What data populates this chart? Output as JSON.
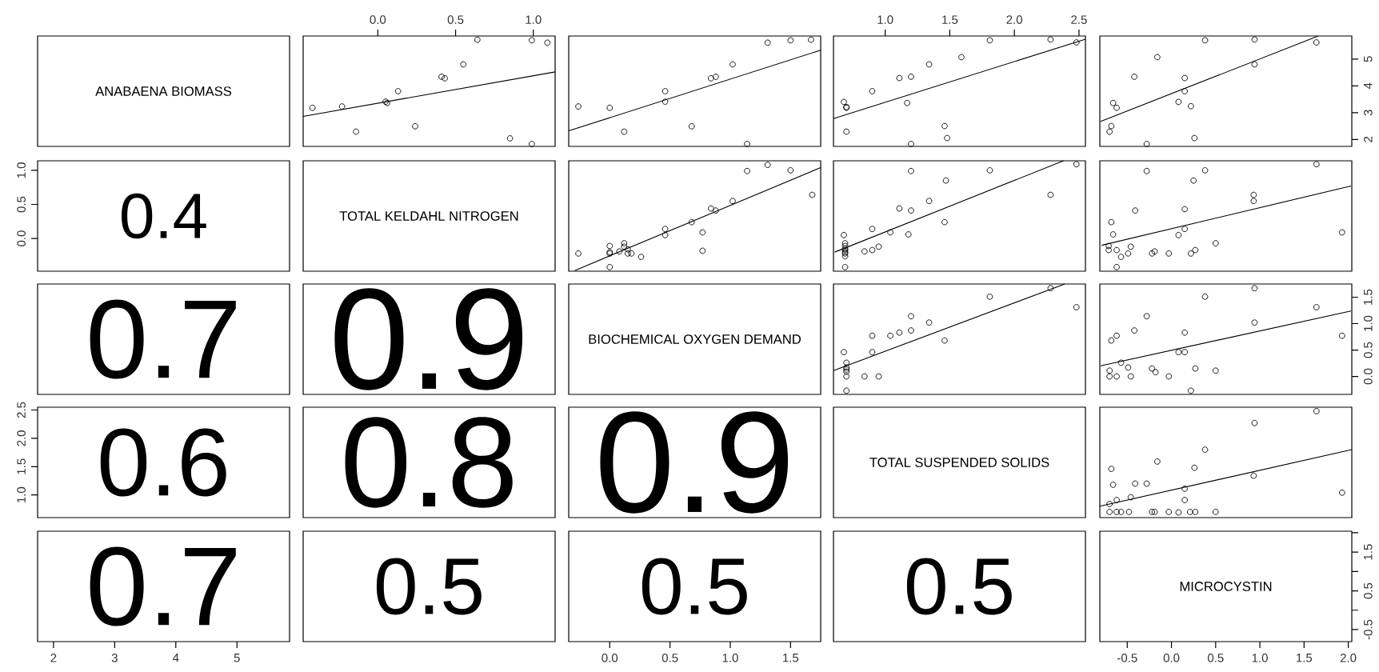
{
  "chart_data": [
    {
      "type": "other",
      "title": "ANABAENA BIOMASS"
    },
    {
      "type": "scatter",
      "xlim": [
        -0.48,
        1.14
      ],
      "ylim": [
        1.74,
        5.86
      ],
      "xticks": [
        {
          "value": 0,
          "label": "0.0"
        },
        0.5,
        {
          "value": 1,
          "label": "1.0"
        }
      ],
      "tick_labels": "x",
      "series": [
        {
          "type": "scatter",
          "color": "#000000",
          "marker": "circle",
          "x": [
            -0.42,
            -0.23,
            -0.14,
            0.05,
            0.06,
            0.13,
            0.24,
            0.41,
            0.43,
            0.55,
            0.64,
            0.85,
            0.99,
            0.99,
            1.09
          ],
          "values": [
            3.18,
            3.23,
            2.29,
            3.41,
            3.36,
            3.8,
            2.49,
            4.34,
            4.28,
            4.8,
            5.72,
            2.04,
            1.83,
            5.7,
            5.61
          ]
        },
        {
          "type": "line",
          "color": "#000000",
          "marker": "none",
          "line_style": "solid",
          "x": [
            -0.48,
            1.14
          ],
          "values": [
            2.86,
            4.52
          ]
        }
      ]
    },
    {
      "type": "scatter",
      "xlim": [
        -0.34,
        1.75
      ],
      "ylim": [
        1.74,
        5.86
      ],
      "tick_labels": false,
      "series": [
        {
          "type": "scatter",
          "color": "#000000",
          "marker": "circle",
          "x": [
            -0.26,
            0.0,
            0.12,
            0.46,
            0.46,
            0.68,
            0.84,
            0.88,
            1.02,
            1.14,
            1.31,
            1.5,
            1.67
          ],
          "values": [
            3.23,
            3.18,
            2.29,
            3.8,
            3.41,
            2.49,
            4.28,
            4.34,
            4.8,
            1.83,
            5.61,
            5.7,
            5.72
          ]
        },
        {
          "type": "line",
          "color": "#000000",
          "marker": "none",
          "line_style": "solid",
          "x": [
            -0.34,
            1.75
          ],
          "values": [
            2.32,
            5.33
          ]
        }
      ]
    },
    {
      "type": "scatter",
      "xlim": [
        0.6,
        2.55
      ],
      "ylim": [
        1.74,
        5.86
      ],
      "xticks": [
        {
          "value": 1,
          "label": "1.0"
        },
        1.5,
        {
          "value": 2,
          "label": "2.0"
        },
        2.5
      ],
      "tick_labels": "x",
      "series": [
        {
          "type": "scatter",
          "color": "#000000",
          "marker": "circle",
          "x": [
            0.68,
            0.7,
            0.7,
            0.7,
            0.9,
            1.11,
            1.17,
            1.2,
            1.2,
            1.34,
            1.46,
            1.48,
            1.59,
            1.81,
            2.28,
            2.48
          ],
          "values": [
            3.4,
            3.21,
            3.18,
            2.29,
            3.8,
            4.29,
            3.36,
            4.34,
            1.83,
            4.8,
            2.5,
            2.05,
            5.07,
            5.7,
            5.73,
            5.62
          ]
        },
        {
          "type": "line",
          "color": "#000000",
          "marker": "none",
          "line_style": "solid",
          "x": [
            0.6,
            2.55
          ],
          "values": [
            2.78,
            5.74
          ]
        }
      ]
    },
    {
      "type": "scatter",
      "xlim": [
        -0.81,
        2.04
      ],
      "ylim": [
        1.74,
        5.86
      ],
      "yticks": [
        2,
        3,
        4,
        5
      ],
      "tick_labels": "y",
      "series": [
        {
          "type": "scatter",
          "color": "#000000",
          "marker": "circle",
          "x": [
            -0.7,
            -0.68,
            -0.66,
            -0.62,
            -0.42,
            -0.28,
            -0.16,
            0.08,
            0.15,
            0.15,
            0.22,
            0.26,
            0.38,
            0.94,
            0.94,
            1.64
          ],
          "values": [
            2.29,
            2.5,
            3.36,
            3.18,
            4.34,
            1.83,
            5.07,
            3.4,
            4.29,
            3.8,
            3.24,
            2.05,
            5.7,
            4.8,
            5.73,
            5.62
          ]
        },
        {
          "type": "line",
          "color": "#000000",
          "marker": "none",
          "line_style": "solid",
          "x": [
            -0.8,
            1.66
          ],
          "values": [
            2.67,
            5.86
          ]
        }
      ]
    },
    {
      "type": "scatter",
      "annotations": [
        "0.4"
      ],
      "xlim": [
        1.74,
        5.86
      ],
      "ylim": [
        -0.48,
        1.14
      ],
      "yticks": [
        {
          "value": 0,
          "label": "0.0"
        },
        0.5,
        {
          "value": 1,
          "label": "1.0"
        }
      ],
      "tick_labels": "y"
    },
    {
      "type": "other",
      "title": "TOTAL KELDAHL NITROGEN"
    },
    {
      "type": "scatter",
      "xlim": [
        -0.34,
        1.75
      ],
      "ylim": [
        -0.48,
        1.14
      ],
      "tick_labels": false,
      "series": [
        {
          "type": "scatter",
          "color": "#000000",
          "marker": "circle",
          "x": [
            -0.26,
            0.0,
            0.0,
            0.0,
            0.0,
            0.08,
            0.12,
            0.12,
            0.15,
            0.15,
            0.18,
            0.26,
            0.46,
            0.46,
            0.68,
            0.77,
            0.77,
            0.84,
            0.88,
            1.02,
            1.14,
            1.31,
            1.5,
            1.68
          ],
          "values": [
            -0.22,
            -0.11,
            -0.2,
            -0.22,
            -0.42,
            -0.19,
            -0.07,
            -0.12,
            -0.16,
            -0.22,
            -0.22,
            -0.27,
            0.14,
            0.05,
            0.24,
            0.09,
            -0.18,
            0.44,
            0.41,
            0.55,
            0.99,
            1.08,
            1.0,
            0.64
          ]
        },
        {
          "type": "line",
          "color": "#000000",
          "marker": "none",
          "line_style": "solid",
          "x": [
            -0.29,
            1.75
          ],
          "values": [
            -0.47,
            1.04
          ]
        }
      ]
    },
    {
      "type": "scatter",
      "xlim": [
        0.6,
        2.55
      ],
      "ylim": [
        -0.48,
        1.14
      ],
      "tick_labels": false,
      "series": [
        {
          "type": "scatter",
          "color": "#000000",
          "marker": "circle",
          "x": [
            0.68,
            0.69,
            0.69,
            0.69,
            0.69,
            0.69,
            0.69,
            0.69,
            0.69,
            0.84,
            0.9,
            0.9,
            0.95,
            1.04,
            1.11,
            1.18,
            1.2,
            1.34,
            1.46,
            1.47,
            1.2,
            1.81,
            2.48,
            2.28
          ],
          "values": [
            0.05,
            -0.07,
            -0.11,
            -0.15,
            -0.17,
            -0.2,
            -0.22,
            -0.26,
            -0.42,
            -0.19,
            -0.17,
            0.14,
            -0.12,
            0.09,
            0.44,
            0.06,
            0.41,
            0.55,
            0.24,
            0.85,
            0.99,
            1.0,
            1.09,
            0.64
          ]
        },
        {
          "type": "line",
          "color": "#000000",
          "marker": "none",
          "line_style": "solid",
          "x": [
            0.61,
            2.38
          ],
          "values": [
            -0.2,
            1.14
          ]
        }
      ]
    },
    {
      "type": "scatter",
      "xlim": [
        -0.81,
        2.04
      ],
      "ylim": [
        -0.48,
        1.14
      ],
      "tick_labels": false,
      "series": [
        {
          "type": "scatter",
          "color": "#000000",
          "marker": "circle",
          "x": [
            -0.71,
            -0.71,
            -0.68,
            -0.66,
            -0.62,
            -0.62,
            -0.57,
            -0.49,
            -0.46,
            -0.41,
            -0.22,
            -0.19,
            -0.03,
            0.08,
            0.15,
            0.15,
            0.22,
            0.27,
            0.25,
            0.5,
            0.93,
            0.93,
            1.93,
            -0.28,
            0.38,
            1.64
          ],
          "values": [
            -0.11,
            -0.17,
            0.24,
            0.06,
            -0.17,
            -0.42,
            -0.27,
            -0.22,
            -0.12,
            0.41,
            -0.22,
            -0.19,
            -0.22,
            0.05,
            0.43,
            0.14,
            -0.22,
            -0.17,
            0.85,
            -0.07,
            0.64,
            0.55,
            0.09,
            0.99,
            1.0,
            1.09
          ]
        },
        {
          "type": "line",
          "color": "#000000",
          "marker": "none",
          "line_style": "solid",
          "x": [
            -0.79,
            2.03
          ],
          "values": [
            -0.1,
            0.77
          ]
        }
      ]
    },
    {
      "type": "other",
      "values": [
        0.7
      ],
      "value_labels": [
        "0.7"
      ]
    },
    {
      "type": "other",
      "values": [
        0.9
      ],
      "value_labels": [
        "0.9"
      ]
    },
    {
      "type": "other",
      "title": "BIOCHEMICAL OXYGEN DEMAND"
    },
    {
      "type": "scatter",
      "xlim": [
        0.6,
        2.55
      ],
      "ylim": [
        -0.34,
        1.75
      ],
      "tick_labels": false,
      "series": [
        {
          "type": "scatter",
          "color": "#000000",
          "marker": "circle",
          "x": [
            0.68,
            0.7,
            0.7,
            0.7,
            0.7,
            0.7,
            0.7,
            0.84,
            0.9,
            0.9,
            0.95,
            1.04,
            1.11,
            1.2,
            1.2,
            1.34,
            1.46,
            1.81,
            2.28,
            2.48
          ],
          "values": [
            0.46,
            0.26,
            0.17,
            0.13,
            0.09,
            0.0,
            -0.27,
            0.0,
            0.77,
            0.46,
            0.0,
            0.77,
            0.83,
            1.14,
            0.87,
            1.02,
            0.68,
            1.51,
            1.67,
            1.31
          ]
        },
        {
          "type": "line",
          "color": "#000000",
          "marker": "none",
          "line_style": "solid",
          "x": [
            0.6,
            2.39
          ],
          "values": [
            0.11,
            1.75
          ]
        }
      ]
    },
    {
      "type": "scatter",
      "xlim": [
        -0.81,
        2.04
      ],
      "ylim": [
        -0.34,
        1.75
      ],
      "yticks": [
        {
          "value": 0,
          "label": "0.0"
        },
        0.5,
        {
          "value": 1,
          "label": "1.0"
        },
        1.5
      ],
      "tick_labels": "y",
      "series": [
        {
          "type": "scatter",
          "color": "#000000",
          "marker": "circle",
          "x": [
            -0.7,
            -0.7,
            -0.68,
            -0.62,
            -0.62,
            -0.57,
            -0.49,
            -0.46,
            -0.42,
            -0.28,
            -0.22,
            -0.18,
            -0.03,
            0.08,
            0.15,
            0.15,
            0.22,
            0.27,
            0.38,
            0.5,
            0.94,
            0.94,
            1.64,
            1.93
          ],
          "values": [
            0.11,
            0.0,
            0.68,
            0.77,
            0.0,
            0.26,
            0.17,
            0.0,
            0.87,
            1.14,
            0.15,
            0.08,
            0.0,
            0.46,
            0.83,
            0.46,
            -0.27,
            0.15,
            1.51,
            0.11,
            1.67,
            1.02,
            1.31,
            0.77
          ]
        },
        {
          "type": "line",
          "color": "#000000",
          "marker": "none",
          "line_style": "solid",
          "x": [
            -0.8,
            2.03
          ],
          "values": [
            0.2,
            1.24
          ]
        }
      ]
    },
    {
      "type": "scatter",
      "annotations": [
        "0.6"
      ],
      "xlim": [
        1.74,
        5.86
      ],
      "ylim": [
        0.6,
        2.55
      ],
      "yticks": [
        {
          "value": 1,
          "label": "1.0"
        },
        1.5,
        {
          "value": 2,
          "label": "2.0"
        },
        2.5
      ],
      "tick_labels": "y"
    },
    {
      "type": "other",
      "values": [
        0.8
      ],
      "value_labels": [
        "0.8"
      ]
    },
    {
      "type": "other",
      "values": [
        0.9
      ],
      "value_labels": [
        "0.9"
      ]
    },
    {
      "type": "other",
      "title": "TOTAL SUSPENDED SOLIDS"
    },
    {
      "type": "scatter",
      "xlim": [
        -0.81,
        2.04
      ],
      "ylim": [
        0.6,
        2.55
      ],
      "tick_labels": false,
      "series": [
        {
          "type": "scatter",
          "color": "#000000",
          "marker": "circle",
          "x": [
            -0.7,
            -0.7,
            -0.68,
            -0.66,
            -0.62,
            -0.62,
            -0.57,
            -0.48,
            -0.46,
            -0.41,
            -0.28,
            -0.22,
            -0.19,
            -0.16,
            -0.03,
            0.08,
            0.15,
            0.15,
            0.21,
            0.26,
            0.27,
            0.38,
            0.5,
            0.93,
            0.94,
            1.64,
            1.93
          ],
          "values": [
            0.84,
            0.7,
            1.46,
            1.18,
            0.91,
            0.7,
            0.7,
            0.7,
            0.96,
            1.2,
            1.2,
            0.7,
            0.7,
            1.59,
            0.7,
            0.69,
            1.11,
            0.91,
            0.7,
            1.48,
            0.7,
            1.8,
            0.7,
            1.34,
            2.27,
            2.48,
            1.04
          ]
        },
        {
          "type": "line",
          "color": "#000000",
          "marker": "none",
          "line_style": "solid",
          "x": [
            -0.81,
            2.04
          ],
          "values": [
            0.8,
            1.8
          ]
        }
      ]
    },
    {
      "type": "scatter",
      "annotations": [
        "0.7"
      ],
      "xlim": [
        1.74,
        5.86
      ],
      "ylim": [
        -0.81,
        2.04
      ],
      "xticks": [
        2,
        3,
        4,
        5
      ],
      "tick_labels": "x"
    },
    {
      "type": "other",
      "values": [
        0.5
      ],
      "value_labels": [
        "0.5"
      ]
    },
    {
      "type": "scatter",
      "annotations": [
        "0.5"
      ],
      "xlim": [
        -0.34,
        1.75
      ],
      "ylim": [
        -0.81,
        2.04
      ],
      "xticks": [
        {
          "value": 0,
          "label": "0.0"
        },
        0.5,
        {
          "value": 1,
          "label": "1.0"
        },
        1.5
      ],
      "tick_labels": "x"
    },
    {
      "type": "other",
      "values": [
        0.5
      ],
      "value_labels": [
        "0.5"
      ]
    },
    {
      "type": "scatter",
      "annotations": [
        "MICROCYSTIN"
      ],
      "xlim": [
        -0.81,
        2.04
      ],
      "ylim": [
        -0.81,
        2.04
      ],
      "xticks": [
        -0.5,
        {
          "value": 0,
          "label": "0.0"
        },
        0.5,
        {
          "value": 1,
          "label": "1.0"
        },
        1.5,
        {
          "value": 2,
          "label": "2.0"
        }
      ],
      "yticks": [
        -0.5,
        {
          "value": 0,
          "label": null
        },
        0.5,
        {
          "value": 1,
          "label": null
        },
        1.5,
        {
          "value": 2,
          "label": null
        }
      ]
    }
  ]
}
